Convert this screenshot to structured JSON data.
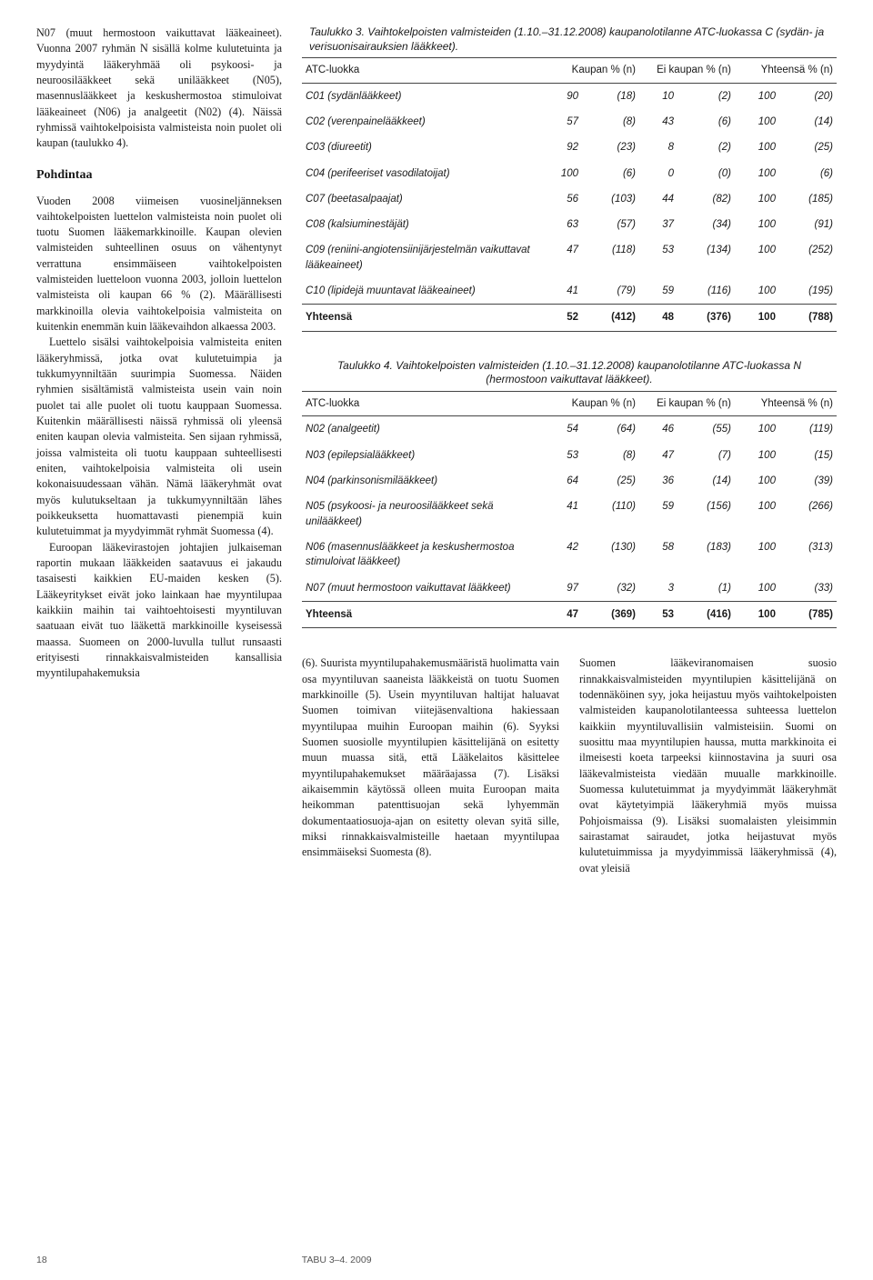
{
  "leftColumn": {
    "para1": "N07 (muut hermostoon vaikuttavat lääkeaineet). Vuonna 2007 ryhmän N sisällä kolme kulutetuinta ja myydyintä lääkeryhmää oli psykoosi- ja neuroosilääkkeet sekä unilääkkeet (N05), masennuslääkkeet ja keskushermostoa stimuloivat lääkeaineet (N06) ja analgeetit (N02) (4). Näissä ryhmissä vaihtokelpoisista valmisteista noin puolet oli kaupan (taulukko 4).",
    "pohdintaTitle": "Pohdintaa",
    "para2": "Vuoden 2008 viimeisen vuosineljänneksen vaihtokelpoisten luettelon valmisteista noin puolet oli tuotu Suomen lääkemarkkinoille. Kaupan olevien valmisteiden suhteellinen osuus on vähentynyt verrattuna ensimmäiseen vaihtokelpoisten valmisteiden luetteloon vuonna 2003, jolloin luettelon valmisteista oli kaupan 66 % (2). Määrällisesti markkinoilla olevia vaihtokelpoisia valmisteita on kuitenkin enemmän kuin lääkevaihdon alkaessa 2003.",
    "para3": "Luettelo sisälsi vaihtokelpoisia valmisteita eniten lääkeryhmissä, jotka ovat kulutetuimpia ja tukkumyynniltään suurimpia Suomessa. Näiden ryhmien sisältämistä valmisteista usein vain noin puolet tai alle puolet oli tuotu kauppaan Suomessa. Kuitenkin määrällisesti näissä ryhmissä oli yleensä eniten kaupan olevia valmisteita. Sen sijaan ryhmissä, joissa valmisteita oli tuotu kauppaan suhteellisesti eniten, vaihtokelpoisia valmisteita oli usein kokonaisuudessaan vähän. Nämä lääkeryhmät ovat myös kulutukseltaan ja tukkumyynniltään lähes poikkeuksetta huomattavasti pienempiä kuin kulutetuimmat ja myydyimmät ryhmät Suomessa (4).",
    "para4": "Euroopan lääkevirastojen johtajien julkaiseman raportin mukaan lääkkeiden saatavuus ei jakaudu tasaisesti kaikkien EU-maiden kesken (5). Lääkeyritykset eivät joko lainkaan hae myyntilupaa kaikkiin maihin tai vaihtoehtoisesti myyntiluvan saatuaan eivät tuo lääkettä markkinoille kyseisessä maassa. Suomeen on 2000-luvulla tullut runsaasti erityisesti rinnakkaisvalmisteiden kansallisia myyntilupahakemuksia"
  },
  "table3": {
    "caption": "Taulukko 3. Vaihtokelpoisten valmisteiden (1.10.–31.12.2008) kaupanolotilanne ATC-luokassa C (sydän- ja verisuonisairauksien lääkkeet).",
    "headers": {
      "c1": "ATC-luokka",
      "c2": "Kaupan % (n)",
      "c3": "Ei kaupan % (n)",
      "c4": "Yhteensä % (n)"
    },
    "rows": [
      {
        "label": "C01 (sydänlääkkeet)",
        "v": [
          "90",
          "(18)",
          "10",
          "(2)",
          "100",
          "(20)"
        ]
      },
      {
        "label": "C02 (verenpainelääkkeet)",
        "v": [
          "57",
          "(8)",
          "43",
          "(6)",
          "100",
          "(14)"
        ]
      },
      {
        "label": "C03 (diureetit)",
        "v": [
          "92",
          "(23)",
          "8",
          "(2)",
          "100",
          "(25)"
        ]
      },
      {
        "label": "C04 (perifeeriset vasodilatoijat)",
        "v": [
          "100",
          "(6)",
          "0",
          "(0)",
          "100",
          "(6)"
        ]
      },
      {
        "label": "C07 (beetasalpaajat)",
        "v": [
          "56",
          "(103)",
          "44",
          "(82)",
          "100",
          "(185)"
        ]
      },
      {
        "label": "C08 (kalsiuminestäjät)",
        "v": [
          "63",
          "(57)",
          "37",
          "(34)",
          "100",
          "(91)"
        ]
      },
      {
        "label": "C09 (reniini-angiotensiinijärjestelmän vaikuttavat lääkeaineet)",
        "v": [
          "47",
          "(118)",
          "53",
          "(134)",
          "100",
          "(252)"
        ]
      },
      {
        "label": "C10 (lipidejä muuntavat lääkeaineet)",
        "v": [
          "41",
          "(79)",
          "59",
          "(116)",
          "100",
          "(195)"
        ]
      }
    ],
    "total": {
      "label": "Yhteensä",
      "v": [
        "52",
        "(412)",
        "48",
        "(376)",
        "100",
        "(788)"
      ]
    }
  },
  "table4": {
    "caption": "Taulukko 4. Vaihtokelpoisten valmisteiden (1.10.–31.12.2008) kaupanolotilanne ATC-luokassa N (hermostoon vaikuttavat lääkkeet).",
    "headers": {
      "c1": "ATC-luokka",
      "c2": "Kaupan % (n)",
      "c3": "Ei kaupan % (n)",
      "c4": "Yhteensä % (n)"
    },
    "rows": [
      {
        "label": "N02 (analgeetit)",
        "v": [
          "54",
          "(64)",
          "46",
          "(55)",
          "100",
          "(119)"
        ]
      },
      {
        "label": "N03 (epilepsialääkkeet)",
        "v": [
          "53",
          "(8)",
          "47",
          "(7)",
          "100",
          "(15)"
        ]
      },
      {
        "label": "N04 (parkinsonismilääkkeet)",
        "v": [
          "64",
          "(25)",
          "36",
          "(14)",
          "100",
          "(39)"
        ]
      },
      {
        "label": "N05 (psykoosi- ja neuroosilääkkeet sekä unilääkkeet)",
        "v": [
          "41",
          "(110)",
          "59",
          "(156)",
          "100",
          "(266)"
        ]
      },
      {
        "label": "N06 (masennuslääkkeet ja keskushermostoa stimuloivat lääkkeet)",
        "v": [
          "42",
          "(130)",
          "58",
          "(183)",
          "100",
          "(313)"
        ]
      },
      {
        "label": "N07 (muut hermostoon vaikuttavat lääkkeet)",
        "v": [
          "97",
          "(32)",
          "3",
          "(1)",
          "100",
          "(33)"
        ]
      }
    ],
    "total": {
      "label": "Yhteensä",
      "v": [
        "47",
        "(369)",
        "53",
        "(416)",
        "100",
        "(785)"
      ]
    }
  },
  "bottom": {
    "col1": "(6). Suurista myyntilupahakemusmääristä huolimatta vain osa myyntiluvan saaneista lääkkeistä on tuotu Suomen markkinoille (5). Usein myyntiluvan haltijat haluavat Suomen toimivan viitejäsenvaltiona hakiessaan myyntilupaa muihin Euroopan maihin (6). Syyksi Suomen suosiolle myyntilupien käsittelijänä on esitetty muun muassa sitä, että Lääkelaitos käsittelee myyntilupahakemukset määräajassa (7). Lisäksi aikaisemmin käytössä olleen muita Euroopan maita heikomman patenttisuojan sekä lyhyemmän dokumentaatiosuoja-ajan on esitetty olevan syitä sille, miksi rinnakkaisvalmisteille haetaan myyntilupaa ensimmäiseksi Suomesta (8).",
    "col2": "Suomen lääkeviranomaisen suosio rinnakkaisvalmisteiden myyntilupien käsittelijänä on todennäköinen syy, joka heijastuu myös vaihtokelpoisten valmisteiden kaupanolotilanteessa suhteessa luettelon kaikkiin myyntiluvallisiin valmisteisiin. Suomi on suosittu maa myyntilupien haussa, mutta markkinoita ei ilmeisesti koeta tarpeeksi kiinnostavina ja suuri osa lääkevalmisteista viedään muualle markkinoille. Suomessa kulutetuimmat ja myydyimmät lääkeryhmät ovat käytetyimpiä lääkeryhmiä myös muissa Pohjoismaissa (9). Lisäksi suomalaisten yleisimmin sairastamat sairaudet, jotka heijastuvat myös kulutetuimmissa ja myydyimmissä lääkeryhmissä (4), ovat yleisiä"
  },
  "footer": {
    "pageNum": "18",
    "journal": "TABU 3–4. 2009"
  },
  "style": {
    "table_font": "Arial",
    "body_font": "Georgia",
    "border_color": "#444444",
    "text_color": "#1a1a1a",
    "bg_color": "#ffffff",
    "col_widths_t": {
      "label": "38%",
      "num": "6%",
      "paren": "10%"
    }
  }
}
